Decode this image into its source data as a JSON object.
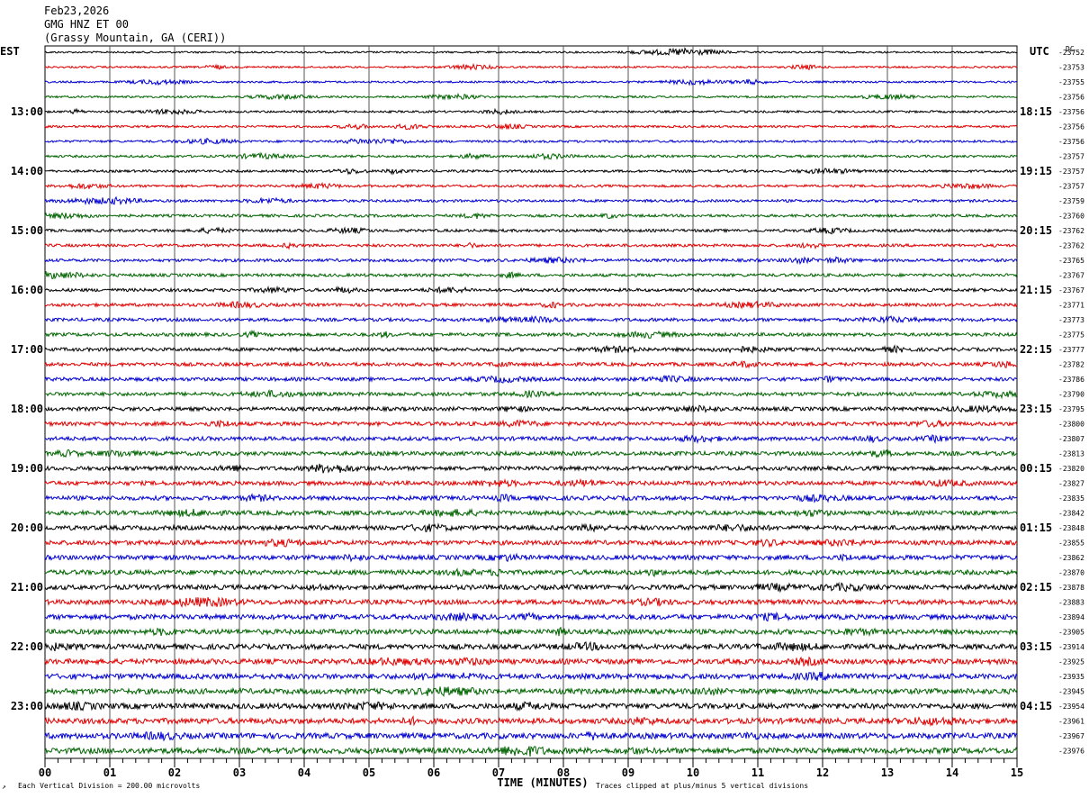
{
  "header": {
    "date": "Feb23,2026",
    "station": "GMG HNZ ET 00",
    "location": "(Grassy Mountain, GA (CERI))"
  },
  "left_axis_label": "EST",
  "right_axis_label": "UTC",
  "dc_label": "DC",
  "footer": {
    "scale": "Each Vertical Division =  200.00 microvolts",
    "clip": "Traces clipped at plus/minus 5 vertical divisions",
    "corner_mark": "↗"
  },
  "chart_data": {
    "type": "line",
    "xlabel": "TIME (MINUTES)",
    "xlim": [
      0,
      15
    ],
    "x_ticks": [
      "00",
      "01",
      "02",
      "03",
      "04",
      "05",
      "06",
      "07",
      "08",
      "09",
      "10",
      "11",
      "12",
      "13",
      "14",
      "15"
    ],
    "trace_colors": [
      "#000000",
      "#e00000",
      "#0000d0",
      "#006400"
    ],
    "traces_per_hour": 4,
    "est_hour_labels": [
      "13:00",
      "14:00",
      "15:00",
      "16:00",
      "17:00",
      "18:00",
      "19:00",
      "20:00",
      "21:00",
      "22:00",
      "23:00"
    ],
    "utc_hour_labels": [
      "18:15",
      "19:15",
      "20:15",
      "21:15",
      "22:15",
      "23:15",
      "00:15",
      "01:15",
      "02:15",
      "03:15",
      "04:15"
    ],
    "dc_offsets": [
      -23752,
      -23753,
      -23755,
      -23756,
      -23756,
      -23756,
      -23756,
      -23757,
      -23757,
      -23757,
      -23759,
      -23760,
      -23762,
      -23762,
      -23765,
      -23767,
      -23767,
      -23771,
      -23773,
      -23775,
      -23777,
      -23782,
      -23786,
      -23790,
      -23795,
      -23800,
      -23807,
      -23813,
      -23820,
      -23827,
      -23835,
      -23842,
      -23848,
      -23855,
      -23862,
      -23870,
      -23878,
      -23883,
      -23894,
      -23905,
      -23914,
      -23925,
      -23935,
      -23945,
      -23954,
      -23961,
      -23967,
      -23976
    ]
  }
}
